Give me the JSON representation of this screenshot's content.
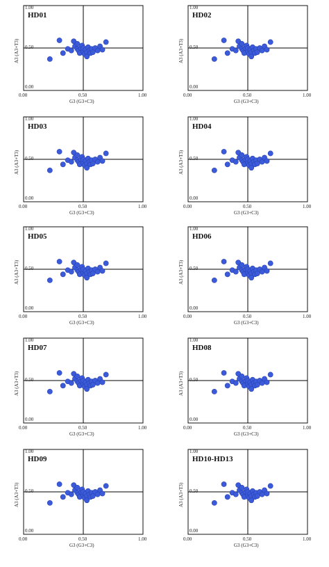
{
  "chart_data": [
    {
      "type": "scatter",
      "title": "HD01",
      "xlabel": "G3 (G3+C3)",
      "ylabel": "A3 (A3+T3)",
      "xticks": [
        "0.00",
        "0.50",
        "1.00"
      ],
      "yticks": [
        "1.00",
        "0.50",
        "0.00"
      ],
      "xlim": [
        0,
        1
      ],
      "ylim": [
        0,
        1
      ],
      "ref_lines": [
        0.5,
        0.5
      ],
      "points": [
        [
          0.22,
          0.37
        ],
        [
          0.3,
          0.59
        ],
        [
          0.33,
          0.44
        ],
        [
          0.37,
          0.49
        ],
        [
          0.4,
          0.47
        ],
        [
          0.42,
          0.58
        ],
        [
          0.43,
          0.52
        ],
        [
          0.45,
          0.49
        ],
        [
          0.45,
          0.55
        ],
        [
          0.46,
          0.47
        ],
        [
          0.47,
          0.44
        ],
        [
          0.48,
          0.5
        ],
        [
          0.49,
          0.53
        ],
        [
          0.5,
          0.46
        ],
        [
          0.5,
          0.5
        ],
        [
          0.51,
          0.43
        ],
        [
          0.52,
          0.48
        ],
        [
          0.53,
          0.45
        ],
        [
          0.53,
          0.4
        ],
        [
          0.54,
          0.51
        ],
        [
          0.55,
          0.47
        ],
        [
          0.56,
          0.44
        ],
        [
          0.57,
          0.49
        ],
        [
          0.58,
          0.45
        ],
        [
          0.6,
          0.5
        ],
        [
          0.62,
          0.47
        ],
        [
          0.64,
          0.52
        ],
        [
          0.66,
          0.48
        ],
        [
          0.69,
          0.57
        ]
      ]
    },
    {
      "type": "scatter",
      "title": "HD02",
      "xlabel": "G3 (G3+C3)",
      "ylabel": "A3 (A3+T3)",
      "xticks": [
        "0.00",
        "0.50",
        "1.00"
      ],
      "yticks": [
        "1.00",
        "0.50",
        "0.00"
      ],
      "xlim": [
        0,
        1
      ],
      "ylim": [
        0,
        1
      ],
      "ref_lines": [
        0.5,
        0.5
      ],
      "points": [
        [
          0.22,
          0.37
        ],
        [
          0.3,
          0.59
        ],
        [
          0.33,
          0.44
        ],
        [
          0.37,
          0.49
        ],
        [
          0.4,
          0.47
        ],
        [
          0.42,
          0.58
        ],
        [
          0.43,
          0.52
        ],
        [
          0.45,
          0.49
        ],
        [
          0.45,
          0.55
        ],
        [
          0.46,
          0.47
        ],
        [
          0.47,
          0.44
        ],
        [
          0.48,
          0.5
        ],
        [
          0.49,
          0.53
        ],
        [
          0.5,
          0.46
        ],
        [
          0.5,
          0.5
        ],
        [
          0.51,
          0.43
        ],
        [
          0.52,
          0.48
        ],
        [
          0.53,
          0.45
        ],
        [
          0.53,
          0.4
        ],
        [
          0.54,
          0.51
        ],
        [
          0.55,
          0.47
        ],
        [
          0.56,
          0.44
        ],
        [
          0.57,
          0.49
        ],
        [
          0.58,
          0.45
        ],
        [
          0.6,
          0.5
        ],
        [
          0.62,
          0.47
        ],
        [
          0.64,
          0.52
        ],
        [
          0.66,
          0.48
        ],
        [
          0.69,
          0.57
        ]
      ]
    },
    {
      "type": "scatter",
      "title": "HD03",
      "xlabel": "G3 (G3+C3)",
      "ylabel": "A3 (A3+T3)",
      "xticks": [
        "0.00",
        "0.50",
        "1.00"
      ],
      "yticks": [
        "1.00",
        "0.50",
        "0.00"
      ],
      "xlim": [
        0,
        1
      ],
      "ylim": [
        0,
        1
      ],
      "ref_lines": [
        0.5,
        0.5
      ],
      "points": [
        [
          0.22,
          0.37
        ],
        [
          0.3,
          0.59
        ],
        [
          0.33,
          0.44
        ],
        [
          0.37,
          0.49
        ],
        [
          0.4,
          0.47
        ],
        [
          0.42,
          0.58
        ],
        [
          0.43,
          0.52
        ],
        [
          0.45,
          0.49
        ],
        [
          0.45,
          0.55
        ],
        [
          0.46,
          0.47
        ],
        [
          0.47,
          0.44
        ],
        [
          0.48,
          0.5
        ],
        [
          0.49,
          0.53
        ],
        [
          0.5,
          0.46
        ],
        [
          0.5,
          0.5
        ],
        [
          0.51,
          0.43
        ],
        [
          0.52,
          0.48
        ],
        [
          0.53,
          0.45
        ],
        [
          0.53,
          0.4
        ],
        [
          0.54,
          0.51
        ],
        [
          0.55,
          0.47
        ],
        [
          0.56,
          0.44
        ],
        [
          0.57,
          0.49
        ],
        [
          0.58,
          0.45
        ],
        [
          0.6,
          0.5
        ],
        [
          0.62,
          0.47
        ],
        [
          0.64,
          0.52
        ],
        [
          0.66,
          0.48
        ],
        [
          0.69,
          0.57
        ]
      ]
    },
    {
      "type": "scatter",
      "title": "HD04",
      "xlabel": "G3 (G3+C3)",
      "ylabel": "A3 (A3+T3)",
      "xticks": [
        "0.00",
        "0.50",
        "1.00"
      ],
      "yticks": [
        "1.00",
        "0.50",
        "0.00"
      ],
      "xlim": [
        0,
        1
      ],
      "ylim": [
        0,
        1
      ],
      "ref_lines": [
        0.5,
        0.5
      ],
      "points": [
        [
          0.22,
          0.37
        ],
        [
          0.3,
          0.59
        ],
        [
          0.33,
          0.44
        ],
        [
          0.37,
          0.49
        ],
        [
          0.4,
          0.47
        ],
        [
          0.42,
          0.58
        ],
        [
          0.43,
          0.52
        ],
        [
          0.45,
          0.49
        ],
        [
          0.45,
          0.55
        ],
        [
          0.46,
          0.47
        ],
        [
          0.47,
          0.44
        ],
        [
          0.48,
          0.5
        ],
        [
          0.49,
          0.53
        ],
        [
          0.5,
          0.46
        ],
        [
          0.5,
          0.5
        ],
        [
          0.51,
          0.43
        ],
        [
          0.52,
          0.48
        ],
        [
          0.53,
          0.45
        ],
        [
          0.53,
          0.4
        ],
        [
          0.54,
          0.51
        ],
        [
          0.55,
          0.47
        ],
        [
          0.56,
          0.44
        ],
        [
          0.57,
          0.49
        ],
        [
          0.58,
          0.45
        ],
        [
          0.6,
          0.5
        ],
        [
          0.62,
          0.47
        ],
        [
          0.64,
          0.52
        ],
        [
          0.66,
          0.48
        ],
        [
          0.69,
          0.57
        ]
      ]
    },
    {
      "type": "scatter",
      "title": "HD05",
      "xlabel": "G3 (G3+C3)",
      "ylabel": "A3 (A3+T3)",
      "xticks": [
        "0.00",
        "0.50",
        "1.00"
      ],
      "yticks": [
        "1.00",
        "0.50",
        "0.00"
      ],
      "xlim": [
        0,
        1
      ],
      "ylim": [
        0,
        1
      ],
      "ref_lines": [
        0.5,
        0.5
      ],
      "points": [
        [
          0.22,
          0.37
        ],
        [
          0.3,
          0.59
        ],
        [
          0.33,
          0.44
        ],
        [
          0.37,
          0.49
        ],
        [
          0.4,
          0.47
        ],
        [
          0.42,
          0.58
        ],
        [
          0.43,
          0.52
        ],
        [
          0.45,
          0.49
        ],
        [
          0.45,
          0.55
        ],
        [
          0.46,
          0.47
        ],
        [
          0.47,
          0.44
        ],
        [
          0.48,
          0.5
        ],
        [
          0.49,
          0.53
        ],
        [
          0.5,
          0.46
        ],
        [
          0.5,
          0.5
        ],
        [
          0.51,
          0.43
        ],
        [
          0.52,
          0.48
        ],
        [
          0.53,
          0.45
        ],
        [
          0.53,
          0.4
        ],
        [
          0.54,
          0.51
        ],
        [
          0.55,
          0.47
        ],
        [
          0.56,
          0.44
        ],
        [
          0.57,
          0.49
        ],
        [
          0.58,
          0.45
        ],
        [
          0.6,
          0.5
        ],
        [
          0.62,
          0.47
        ],
        [
          0.64,
          0.52
        ],
        [
          0.66,
          0.48
        ],
        [
          0.69,
          0.57
        ]
      ]
    },
    {
      "type": "scatter",
      "title": "HD06",
      "xlabel": "G3 (G3+C3)",
      "ylabel": "A3 (A3+T3)",
      "xticks": [
        "0.00",
        "0.50",
        "1.00"
      ],
      "yticks": [
        "1.00",
        "0.50",
        "0.00"
      ],
      "xlim": [
        0,
        1
      ],
      "ylim": [
        0,
        1
      ],
      "ref_lines": [
        0.5,
        0.5
      ],
      "points": [
        [
          0.22,
          0.37
        ],
        [
          0.3,
          0.59
        ],
        [
          0.33,
          0.44
        ],
        [
          0.37,
          0.49
        ],
        [
          0.4,
          0.47
        ],
        [
          0.42,
          0.58
        ],
        [
          0.43,
          0.52
        ],
        [
          0.45,
          0.49
        ],
        [
          0.45,
          0.55
        ],
        [
          0.46,
          0.47
        ],
        [
          0.47,
          0.44
        ],
        [
          0.48,
          0.5
        ],
        [
          0.49,
          0.53
        ],
        [
          0.5,
          0.46
        ],
        [
          0.5,
          0.5
        ],
        [
          0.51,
          0.43
        ],
        [
          0.52,
          0.48
        ],
        [
          0.53,
          0.45
        ],
        [
          0.53,
          0.4
        ],
        [
          0.54,
          0.51
        ],
        [
          0.55,
          0.47
        ],
        [
          0.56,
          0.44
        ],
        [
          0.57,
          0.49
        ],
        [
          0.58,
          0.45
        ],
        [
          0.6,
          0.5
        ],
        [
          0.62,
          0.47
        ],
        [
          0.64,
          0.52
        ],
        [
          0.66,
          0.48
        ],
        [
          0.69,
          0.57
        ]
      ]
    },
    {
      "type": "scatter",
      "title": "HD07",
      "xlabel": "G3 (G3+C3)",
      "ylabel": "A3 (A3+T3)",
      "xticks": [
        "0.00",
        "0.50",
        "1.00"
      ],
      "yticks": [
        "1.00",
        "0.50",
        "0.00"
      ],
      "xlim": [
        0,
        1
      ],
      "ylim": [
        0,
        1
      ],
      "ref_lines": [
        0.5,
        0.5
      ],
      "points": [
        [
          0.22,
          0.37
        ],
        [
          0.3,
          0.59
        ],
        [
          0.33,
          0.44
        ],
        [
          0.37,
          0.49
        ],
        [
          0.4,
          0.47
        ],
        [
          0.42,
          0.58
        ],
        [
          0.43,
          0.52
        ],
        [
          0.45,
          0.49
        ],
        [
          0.45,
          0.55
        ],
        [
          0.46,
          0.47
        ],
        [
          0.47,
          0.44
        ],
        [
          0.48,
          0.5
        ],
        [
          0.49,
          0.53
        ],
        [
          0.5,
          0.46
        ],
        [
          0.5,
          0.5
        ],
        [
          0.51,
          0.43
        ],
        [
          0.52,
          0.48
        ],
        [
          0.53,
          0.45
        ],
        [
          0.53,
          0.4
        ],
        [
          0.54,
          0.51
        ],
        [
          0.55,
          0.47
        ],
        [
          0.56,
          0.44
        ],
        [
          0.57,
          0.49
        ],
        [
          0.58,
          0.45
        ],
        [
          0.6,
          0.5
        ],
        [
          0.62,
          0.47
        ],
        [
          0.64,
          0.52
        ],
        [
          0.66,
          0.48
        ],
        [
          0.69,
          0.57
        ]
      ]
    },
    {
      "type": "scatter",
      "title": "HD08",
      "xlabel": "G3 (G3+C3)",
      "ylabel": "A3 (A3+T3)",
      "xticks": [
        "0.00",
        "0.50",
        "1.00"
      ],
      "yticks": [
        "1.00",
        "0.50",
        "0.00"
      ],
      "xlim": [
        0,
        1
      ],
      "ylim": [
        0,
        1
      ],
      "ref_lines": [
        0.5,
        0.5
      ],
      "points": [
        [
          0.22,
          0.37
        ],
        [
          0.3,
          0.59
        ],
        [
          0.33,
          0.44
        ],
        [
          0.37,
          0.49
        ],
        [
          0.4,
          0.47
        ],
        [
          0.42,
          0.58
        ],
        [
          0.43,
          0.52
        ],
        [
          0.45,
          0.49
        ],
        [
          0.45,
          0.55
        ],
        [
          0.46,
          0.47
        ],
        [
          0.47,
          0.44
        ],
        [
          0.48,
          0.5
        ],
        [
          0.49,
          0.53
        ],
        [
          0.5,
          0.46
        ],
        [
          0.5,
          0.5
        ],
        [
          0.51,
          0.43
        ],
        [
          0.52,
          0.48
        ],
        [
          0.53,
          0.45
        ],
        [
          0.53,
          0.4
        ],
        [
          0.54,
          0.51
        ],
        [
          0.55,
          0.47
        ],
        [
          0.56,
          0.44
        ],
        [
          0.57,
          0.49
        ],
        [
          0.58,
          0.45
        ],
        [
          0.6,
          0.5
        ],
        [
          0.62,
          0.47
        ],
        [
          0.64,
          0.52
        ],
        [
          0.66,
          0.48
        ],
        [
          0.69,
          0.57
        ]
      ]
    },
    {
      "type": "scatter",
      "title": "HD09",
      "xlabel": "G3 (G3+C3)",
      "ylabel": "A3 (A3+T3)",
      "xticks": [
        "0.00",
        "0.50",
        "1.00"
      ],
      "yticks": [
        "1.00",
        "0.50",
        "0.00"
      ],
      "xlim": [
        0,
        1
      ],
      "ylim": [
        0,
        1
      ],
      "ref_lines": [
        0.5,
        0.5
      ],
      "points": [
        [
          0.22,
          0.37
        ],
        [
          0.3,
          0.59
        ],
        [
          0.33,
          0.44
        ],
        [
          0.37,
          0.49
        ],
        [
          0.4,
          0.47
        ],
        [
          0.42,
          0.58
        ],
        [
          0.43,
          0.52
        ],
        [
          0.45,
          0.49
        ],
        [
          0.45,
          0.55
        ],
        [
          0.46,
          0.47
        ],
        [
          0.47,
          0.44
        ],
        [
          0.48,
          0.5
        ],
        [
          0.49,
          0.53
        ],
        [
          0.5,
          0.46
        ],
        [
          0.5,
          0.5
        ],
        [
          0.51,
          0.43
        ],
        [
          0.52,
          0.48
        ],
        [
          0.53,
          0.45
        ],
        [
          0.53,
          0.4
        ],
        [
          0.54,
          0.51
        ],
        [
          0.55,
          0.47
        ],
        [
          0.56,
          0.44
        ],
        [
          0.57,
          0.49
        ],
        [
          0.58,
          0.45
        ],
        [
          0.6,
          0.5
        ],
        [
          0.62,
          0.47
        ],
        [
          0.64,
          0.52
        ],
        [
          0.66,
          0.48
        ],
        [
          0.69,
          0.57
        ]
      ]
    },
    {
      "type": "scatter",
      "title": "HD10-HD13",
      "xlabel": "G3 (G3+C3)",
      "ylabel": "A3 (A3+T3)",
      "xticks": [
        "0.00",
        "0.50",
        "1.00"
      ],
      "yticks": [
        "1.00",
        "0.50",
        "0.00"
      ],
      "xlim": [
        0,
        1
      ],
      "ylim": [
        0,
        1
      ],
      "ref_lines": [
        0.5,
        0.5
      ],
      "points": [
        [
          0.22,
          0.37
        ],
        [
          0.3,
          0.59
        ],
        [
          0.33,
          0.44
        ],
        [
          0.37,
          0.49
        ],
        [
          0.4,
          0.47
        ],
        [
          0.42,
          0.58
        ],
        [
          0.43,
          0.52
        ],
        [
          0.45,
          0.49
        ],
        [
          0.45,
          0.55
        ],
        [
          0.46,
          0.47
        ],
        [
          0.47,
          0.44
        ],
        [
          0.48,
          0.5
        ],
        [
          0.49,
          0.53
        ],
        [
          0.5,
          0.46
        ],
        [
          0.5,
          0.5
        ],
        [
          0.51,
          0.43
        ],
        [
          0.52,
          0.48
        ],
        [
          0.53,
          0.45
        ],
        [
          0.53,
          0.4
        ],
        [
          0.54,
          0.51
        ],
        [
          0.55,
          0.47
        ],
        [
          0.56,
          0.44
        ],
        [
          0.57,
          0.49
        ],
        [
          0.58,
          0.45
        ],
        [
          0.6,
          0.5
        ],
        [
          0.62,
          0.47
        ],
        [
          0.64,
          0.52
        ],
        [
          0.66,
          0.48
        ],
        [
          0.69,
          0.57
        ]
      ]
    }
  ],
  "colors": {
    "point_fill": "#3b5bdb",
    "point_edge": "#2a43b0",
    "axis": "#000000",
    "frame": "#111111"
  }
}
